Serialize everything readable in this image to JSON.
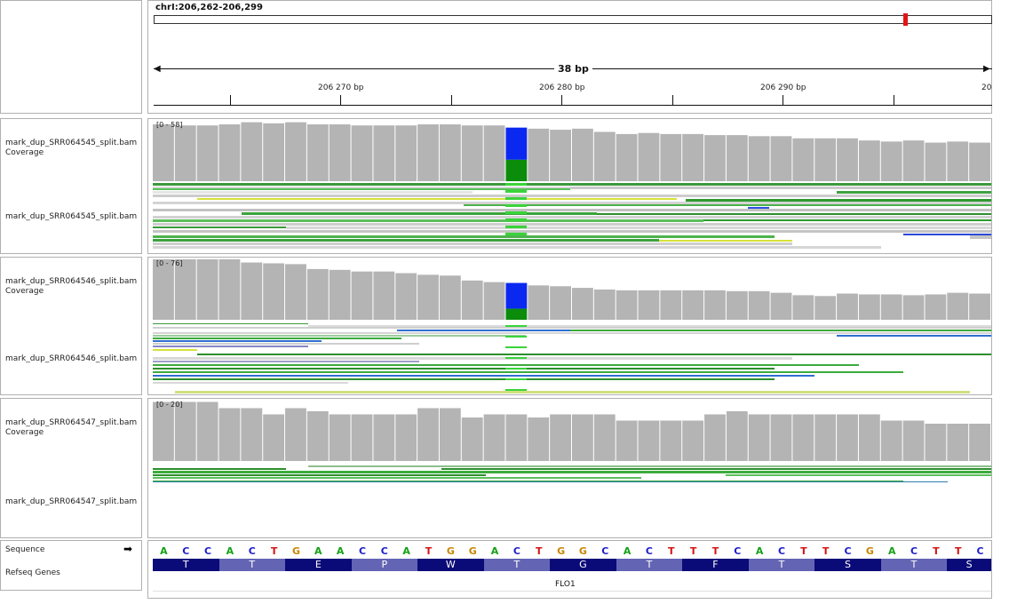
{
  "locus": "chrI:206,262-206,299",
  "ruler": {
    "span_label": "38 bp",
    "ticks": [
      "206 270 bp",
      "206 280 bp",
      "206 290 bp",
      "20"
    ]
  },
  "tracks": [
    {
      "coverage_label": "mark_dup_SRR064545_split.bam Coverage",
      "alignment_label": "mark_dup_SRR064545_split.bam",
      "range": "[0 - 58]",
      "max": 58,
      "depths": [
        53,
        52,
        52,
        53,
        55,
        54,
        55,
        53,
        53,
        52,
        52,
        52,
        53,
        53,
        52,
        52,
        50,
        49,
        48,
        49,
        46,
        44,
        45,
        44,
        44,
        43,
        43,
        42,
        42,
        40,
        40,
        40,
        38,
        37,
        38,
        36,
        37,
        36
      ],
      "mismatch": {
        "index": 16,
        "ref_fraction": 0.4,
        "alt_fraction": 0.6
      }
    },
    {
      "coverage_label": "mark_dup_SRR064546_split.bam Coverage",
      "alignment_label": "mark_dup_SRR064546_split.bam",
      "range": "[0 - 76]",
      "max": 76,
      "depths": [
        74,
        74,
        74,
        74,
        70,
        69,
        68,
        62,
        61,
        59,
        59,
        57,
        55,
        54,
        48,
        46,
        45,
        42,
        41,
        39,
        37,
        36,
        36,
        36,
        36,
        36,
        35,
        35,
        33,
        30,
        29,
        32,
        31,
        31,
        30,
        31,
        33,
        32
      ],
      "mismatch": {
        "index": 16,
        "ref_fraction": 0.3,
        "alt_fraction": 0.7
      }
    },
    {
      "coverage_label": "mark_dup_SRR064547_split.bam Coverage",
      "alignment_label": "mark_dup_SRR064547_split.bam",
      "range": "[0 - 20]",
      "max": 20,
      "depths": [
        19,
        19,
        19,
        17,
        17,
        15,
        17,
        16,
        15,
        15,
        15,
        15,
        17,
        17,
        14,
        15,
        15,
        14,
        15,
        15,
        15,
        13,
        13,
        13,
        13,
        15,
        16,
        15,
        15,
        15,
        15,
        15,
        15,
        13,
        13,
        12,
        12,
        12
      ]
    }
  ],
  "sequence": {
    "label": "Sequence",
    "bases": [
      "A",
      "C",
      "C",
      "A",
      "C",
      "T",
      "G",
      "A",
      "A",
      "C",
      "C",
      "A",
      "T",
      "G",
      "G",
      "A",
      "C",
      "T",
      "G",
      "G",
      "C",
      "A",
      "C",
      "T",
      "T",
      "T",
      "C",
      "A",
      "C",
      "T",
      "T",
      "C",
      "G",
      "A",
      "C",
      "T",
      "T",
      "C"
    ],
    "base_colors": {
      "A": "#13a113",
      "C": "#1c1ccd",
      "G": "#c98500",
      "T": "#d41414"
    }
  },
  "refseq": {
    "label": "Refseq Genes",
    "gene": "FLO1",
    "amino_acids": [
      "T",
      "T",
      "E",
      "P",
      "W",
      "T",
      "G",
      "T",
      "F",
      "T",
      "S",
      "T",
      "S"
    ],
    "colors": {
      "dark": "#0a0a78",
      "light": "#6464b4"
    }
  },
  "colors": {
    "coverage": "#b4b4b4",
    "mismatch_ref": "#0b8c0b",
    "mismatch_alt": "#0a28f0",
    "locus_marker": "#e21414"
  }
}
